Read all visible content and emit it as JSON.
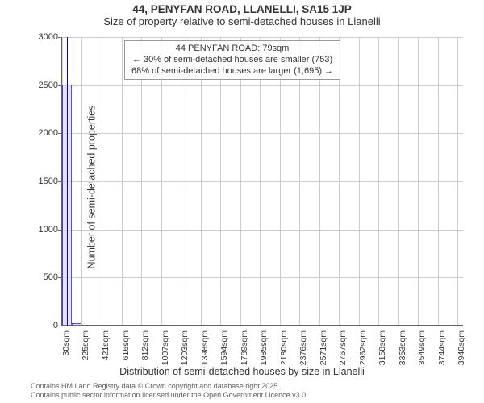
{
  "title_line1": "44, PENYFAN ROAD, LLANELLI, SA15 1JP",
  "title_line2": "Size of property relative to semi-detached houses in Llanelli",
  "ylabel": "Number of semi-detached properties",
  "xlabel": "Distribution of semi-detached houses by size in Llanelli",
  "footer_line1": "Contains HM Land Registry data © Crown copyright and database right 2025.",
  "footer_line2": "Contains public sector information licensed under the Open Government Licence v3.0.",
  "chart": {
    "type": "histogram",
    "background_color": "#ffffff",
    "grid_color": "#cccccc",
    "axis_color": "#666666",
    "text_color": "#333333",
    "ylim": [
      0,
      3000
    ],
    "yticks": [
      0,
      500,
      1000,
      1500,
      2000,
      2500,
      3000
    ],
    "xlim": [
      30,
      4000
    ],
    "xticks": [
      30,
      225,
      421,
      616,
      812,
      1007,
      1203,
      1398,
      1594,
      1789,
      1985,
      2180,
      2376,
      2571,
      2767,
      2962,
      3158,
      3353,
      3549,
      3744,
      3940
    ],
    "xtick_unit": "sqm",
    "bar_fill": "#e0d6f5",
    "bar_border": "#0000ff",
    "bar_fill_opacity": 0.7,
    "bar_border_width": 1,
    "bars": [
      {
        "x0": 30,
        "x1": 128,
        "y": 2500
      },
      {
        "x0": 128,
        "x1": 225,
        "y": 20
      }
    ],
    "marker_x": 79,
    "marker_color": "#0000ff",
    "title_fontsize": 13,
    "label_fontsize": 12.5,
    "tick_fontsize": 11
  },
  "info_box": {
    "line1": "44 PENYFAN ROAD: 79sqm",
    "line2": "← 30% of semi-detached houses are smaller (753)",
    "line3": "68% of semi-detached houses are larger (1,695) →",
    "border_color": "#999999",
    "bg_color": "rgba(255,255,255,0.9)",
    "fontsize": 11
  }
}
